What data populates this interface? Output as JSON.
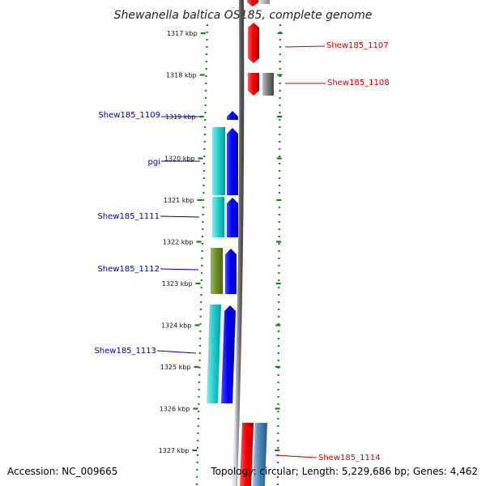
{
  "title": "Shewanella baltica OS185, complete genome",
  "accession": "Accession: NC_009665",
  "topology_line": "Topology: circular; Length: 5,229,686 bp; Genes: 4,462",
  "colors": {
    "forward_label": "#d40000",
    "reverse_label": "#0000aa",
    "tick": "#1f7a1f",
    "backbone": "#808080"
  },
  "ruler_ticks": [
    {
      "label": "1317 kbp",
      "kbp": 1317
    },
    {
      "label": "1318 kbp",
      "kbp": 1318
    },
    {
      "label": "1319 kbp",
      "kbp": 1319
    },
    {
      "label": "1320 kbp",
      "kbp": 1320
    },
    {
      "label": "1321 kbp",
      "kbp": 1321
    },
    {
      "label": "1322 kbp",
      "kbp": 1322
    },
    {
      "label": "1323 kbp",
      "kbp": 1323
    },
    {
      "label": "1324 kbp",
      "kbp": 1324
    },
    {
      "label": "1325 kbp",
      "kbp": 1325
    },
    {
      "label": "1326 kbp",
      "kbp": 1326
    },
    {
      "label": "1327 kbp",
      "kbp": 1327
    }
  ],
  "gene_labels": [
    {
      "text": "Shew185_1107",
      "strand": "forward"
    },
    {
      "text": "Shew185_1108",
      "strand": "forward"
    },
    {
      "text": "Shew185_1109",
      "strand": "reverse"
    },
    {
      "text": "pgi",
      "strand": "reverse"
    },
    {
      "text": "Shew185_1111",
      "strand": "reverse"
    },
    {
      "text": "Shew185_1112",
      "strand": "reverse"
    },
    {
      "text": "Shew185_1113",
      "strand": "reverse"
    },
    {
      "text": "Shew185_1114",
      "strand": "forward"
    }
  ]
}
